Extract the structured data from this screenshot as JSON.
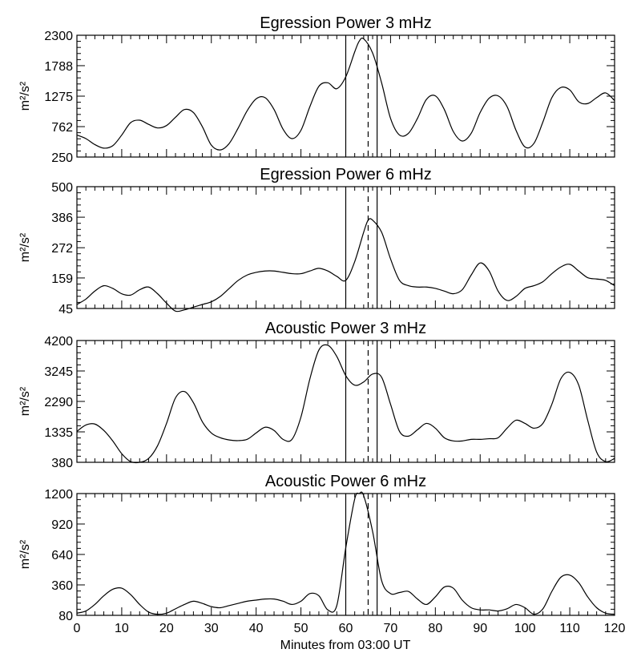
{
  "chart_data": [
    {
      "type": "line",
      "title": "Egression Power 3 mHz",
      "ylabel": "m²/s²",
      "ylim": [
        250,
        2300
      ],
      "yticks": [
        250,
        762,
        1275,
        1788,
        2300
      ],
      "xlim": [
        0,
        120
      ],
      "vlines": [
        60,
        67
      ],
      "vline_dashed": 65,
      "x": [
        0,
        2,
        4,
        6,
        8,
        10,
        12,
        14,
        16,
        18,
        20,
        22,
        24,
        26,
        28,
        30,
        32,
        34,
        36,
        38,
        40,
        42,
        44,
        46,
        48,
        50,
        52,
        54,
        56,
        58,
        60,
        62,
        63,
        64,
        66,
        68,
        70,
        72,
        74,
        76,
        78,
        80,
        82,
        84,
        86,
        88,
        90,
        92,
        94,
        96,
        98,
        100,
        102,
        104,
        106,
        108,
        110,
        112,
        114,
        116,
        118,
        120
      ],
      "series": [
        {
          "values": [
            620,
            560,
            460,
            400,
            440,
            620,
            830,
            870,
            800,
            740,
            780,
            920,
            1050,
            1000,
            760,
            450,
            370,
            480,
            740,
            1030,
            1230,
            1250,
            1050,
            720,
            560,
            700,
            1100,
            1440,
            1500,
            1400,
            1600,
            2020,
            2200,
            2240,
            2000,
            1500,
            900,
            620,
            650,
            900,
            1220,
            1280,
            1050,
            680,
            520,
            650,
            1000,
            1240,
            1280,
            1100,
            700,
            420,
            480,
            840,
            1250,
            1420,
            1380,
            1180,
            1150,
            1250,
            1330,
            1200
          ]
        }
      ]
    },
    {
      "type": "line",
      "title": "Egression Power 6 mHz",
      "ylabel": "m²/s²",
      "ylim": [
        45,
        500
      ],
      "yticks": [
        45,
        159,
        272,
        386,
        500
      ],
      "xlim": [
        0,
        120
      ],
      "vlines": [
        60,
        67
      ],
      "vline_dashed": 65,
      "x": [
        0,
        2,
        4,
        6,
        8,
        10,
        12,
        14,
        16,
        18,
        20,
        22,
        24,
        26,
        28,
        30,
        32,
        34,
        36,
        38,
        40,
        42,
        44,
        46,
        48,
        50,
        52,
        54,
        56,
        58,
        60,
        62,
        64,
        65,
        66,
        68,
        70,
        72,
        74,
        76,
        78,
        80,
        82,
        84,
        86,
        88,
        90,
        92,
        94,
        96,
        98,
        100,
        102,
        104,
        106,
        108,
        110,
        112,
        114,
        116,
        118,
        120
      ],
      "series": [
        {
          "values": [
            60,
            80,
            110,
            130,
            120,
            100,
            95,
            115,
            125,
            100,
            65,
            35,
            40,
            50,
            60,
            70,
            90,
            120,
            150,
            170,
            180,
            185,
            185,
            180,
            175,
            175,
            185,
            195,
            185,
            165,
            150,
            220,
            330,
            375,
            375,
            330,
            230,
            150,
            130,
            125,
            125,
            120,
            110,
            100,
            115,
            170,
            215,
            185,
            110,
            75,
            90,
            120,
            130,
            145,
            175,
            200,
            210,
            185,
            160,
            155,
            150,
            130
          ]
        }
      ]
    },
    {
      "type": "line",
      "title": "Acoustic Power 3 mHz",
      "ylabel": "m²/s²",
      "ylim": [
        380,
        4200
      ],
      "yticks": [
        380,
        1335,
        2290,
        3245,
        4200
      ],
      "xlim": [
        0,
        120
      ],
      "vlines": [
        60,
        67
      ],
      "vline_dashed": 65,
      "x": [
        0,
        2,
        4,
        6,
        8,
        10,
        12,
        14,
        16,
        18,
        20,
        22,
        24,
        26,
        28,
        30,
        32,
        34,
        36,
        38,
        40,
        42,
        44,
        46,
        48,
        50,
        52,
        54,
        56,
        58,
        60,
        62,
        64,
        66,
        68,
        70,
        72,
        74,
        76,
        78,
        80,
        82,
        84,
        86,
        88,
        90,
        92,
        94,
        96,
        98,
        100,
        102,
        104,
        106,
        108,
        110,
        112,
        114,
        116,
        118,
        120
      ],
      "series": [
        {
          "values": [
            1350,
            1550,
            1580,
            1380,
            1050,
            650,
            400,
            380,
            500,
            900,
            1600,
            2400,
            2600,
            2250,
            1650,
            1300,
            1150,
            1080,
            1060,
            1100,
            1300,
            1480,
            1380,
            1100,
            1100,
            1800,
            3000,
            3900,
            4050,
            3700,
            3100,
            2800,
            2900,
            3150,
            3050,
            2200,
            1350,
            1200,
            1400,
            1600,
            1450,
            1150,
            1050,
            1050,
            1100,
            1100,
            1120,
            1150,
            1450,
            1700,
            1600,
            1450,
            1600,
            2200,
            3000,
            3200,
            2800,
            1700,
            700,
            400,
            500
          ]
        }
      ]
    },
    {
      "type": "line",
      "title": "Acoustic Power 6 mHz",
      "ylabel": "m²/s²",
      "ylim": [
        80,
        1200
      ],
      "yticks": [
        80,
        360,
        640,
        920,
        1200
      ],
      "xlim": [
        0,
        120
      ],
      "vlines": [
        60,
        67
      ],
      "vline_dashed": 65,
      "x": [
        0,
        2,
        4,
        6,
        8,
        10,
        12,
        14,
        16,
        18,
        20,
        22,
        24,
        26,
        28,
        30,
        32,
        34,
        36,
        38,
        40,
        42,
        44,
        46,
        48,
        50,
        52,
        54,
        56,
        58,
        60,
        62,
        63,
        64,
        66,
        68,
        70,
        72,
        74,
        76,
        78,
        80,
        82,
        84,
        86,
        88,
        90,
        92,
        94,
        96,
        98,
        100,
        102,
        104,
        106,
        108,
        110,
        112,
        114,
        116,
        118,
        120
      ],
      "series": [
        {
          "values": [
            100,
            120,
            180,
            260,
            320,
            330,
            270,
            180,
            110,
            90,
            100,
            140,
            180,
            210,
            190,
            160,
            150,
            170,
            190,
            210,
            220,
            230,
            230,
            210,
            180,
            210,
            280,
            260,
            130,
            170,
            700,
            1150,
            1200,
            1180,
            850,
            400,
            280,
            290,
            300,
            230,
            180,
            250,
            340,
            330,
            220,
            150,
            130,
            130,
            120,
            140,
            180,
            150,
            90,
            140,
            300,
            430,
            450,
            380,
            250,
            150,
            100,
            90
          ]
        }
      ]
    }
  ],
  "xaxis": {
    "label": "Minutes from 03:00 UT",
    "ticks": [
      "0",
      "10",
      "20",
      "30",
      "40",
      "50",
      "60",
      "70",
      "80",
      "90",
      "100",
      "110",
      "120"
    ]
  }
}
